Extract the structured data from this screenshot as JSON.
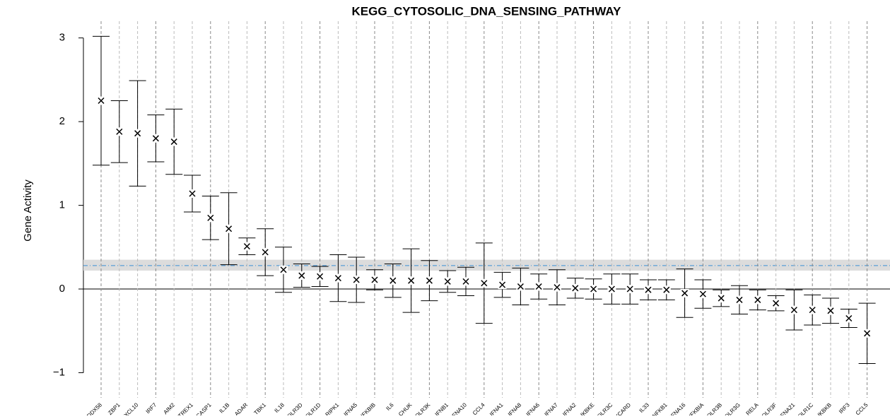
{
  "chart_data": {
    "type": "errorbar",
    "title": "KEGG_CYTOSOLIC_DNA_SENSING_PATHWAY",
    "y_label": "Gene Activity",
    "categories": [
      "DDX58",
      "ZBP1",
      "CXCL10",
      "IRF7",
      "AIM2",
      "TREX1",
      "CASP1",
      "IL1B",
      "ADAR",
      "TBK1",
      "IL18",
      "POLR3D",
      "POLR1D",
      "RIPK1",
      "IFNA5",
      "NFKBIB",
      "IL6",
      "CHUK",
      "POLR3K",
      "IFNB1",
      "IFNA10",
      "CCL4",
      "IFNA1",
      "IFNA8",
      "IFNA6",
      "IFNA7",
      "IFNA2",
      "IKBKE",
      "POLR3C",
      "PYCARD",
      "IL33",
      "NFKB1",
      "IFNA16",
      "NFKBIA",
      "POLR3B",
      "POLR3G",
      "RELA",
      "POLR3F",
      "IFNA21",
      "POLR1C",
      "IKBKB",
      "IRF3",
      "CCL5"
    ],
    "values": [
      2.25,
      1.88,
      1.86,
      1.8,
      1.76,
      1.14,
      0.85,
      0.72,
      0.51,
      0.44,
      0.23,
      0.16,
      0.15,
      0.13,
      0.11,
      0.11,
      0.1,
      0.1,
      0.1,
      0.09,
      0.09,
      0.07,
      0.05,
      0.03,
      0.03,
      0.02,
      0.01,
      0.0,
      0.0,
      0.0,
      -0.01,
      -0.01,
      -0.05,
      -0.06,
      -0.11,
      -0.13,
      -0.13,
      -0.17,
      -0.25,
      -0.25,
      -0.26,
      -0.35,
      -0.53
    ],
    "errors": [
      0.77,
      0.37,
      0.63,
      0.28,
      0.39,
      0.22,
      0.26,
      0.43,
      0.1,
      0.28,
      0.27,
      0.14,
      0.12,
      0.28,
      0.27,
      0.12,
      0.2,
      0.38,
      0.24,
      0.13,
      0.17,
      0.48,
      0.15,
      0.22,
      0.15,
      0.21,
      0.12,
      0.12,
      0.18,
      0.18,
      0.12,
      0.12,
      0.29,
      0.17,
      0.1,
      0.17,
      0.12,
      0.09,
      0.24,
      0.18,
      0.15,
      0.11,
      0.36
    ],
    "reference_line": 0.28,
    "reference_band": [
      0.22,
      0.35
    ],
    "color": "#000000",
    "reference_color": "#3b8fd4",
    "ylim": [
      -1.3,
      3.2
    ],
    "yticks": [
      {
        "value": -1,
        "label": "−1"
      },
      0,
      1,
      2,
      3
    ],
    "grid": true
  }
}
